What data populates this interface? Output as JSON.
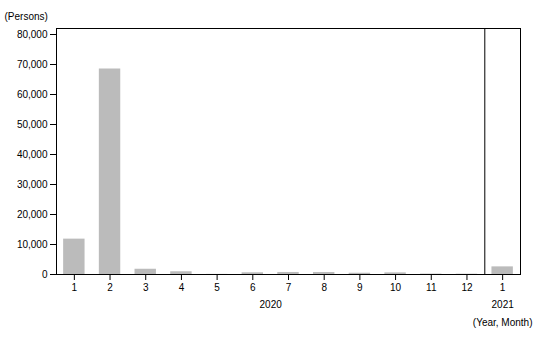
{
  "chart_data": {
    "type": "bar",
    "categories": [
      "1",
      "2",
      "3",
      "4",
      "5",
      "6",
      "7",
      "8",
      "9",
      "10",
      "11",
      "12",
      "1"
    ],
    "values": [
      11791,
      68500,
      1749,
      910,
      38,
      570,
      680,
      660,
      420,
      540,
      130,
      100,
      2540
    ],
    "color": "#bbbbbb",
    "ylabel": "(Persons)",
    "xlabel": "(Year, Month)",
    "x_groups": [
      {
        "label": "2020",
        "size": 12
      },
      {
        "label": "2021",
        "size": 1
      }
    ],
    "ylim": [
      0,
      82000
    ],
    "yticks": [
      0,
      {
        "value": 10000,
        "label": "10,000"
      },
      {
        "value": 20000,
        "label": "20,000"
      },
      {
        "value": 30000,
        "label": "30,000"
      },
      {
        "value": 40000,
        "label": "40,000"
      },
      {
        "value": 50000,
        "label": "50,000"
      },
      {
        "value": 60000,
        "label": "60,000"
      },
      {
        "value": 70000,
        "label": "70,000"
      },
      {
        "value": 80000,
        "label": "80,000"
      }
    ],
    "grid": false
  }
}
